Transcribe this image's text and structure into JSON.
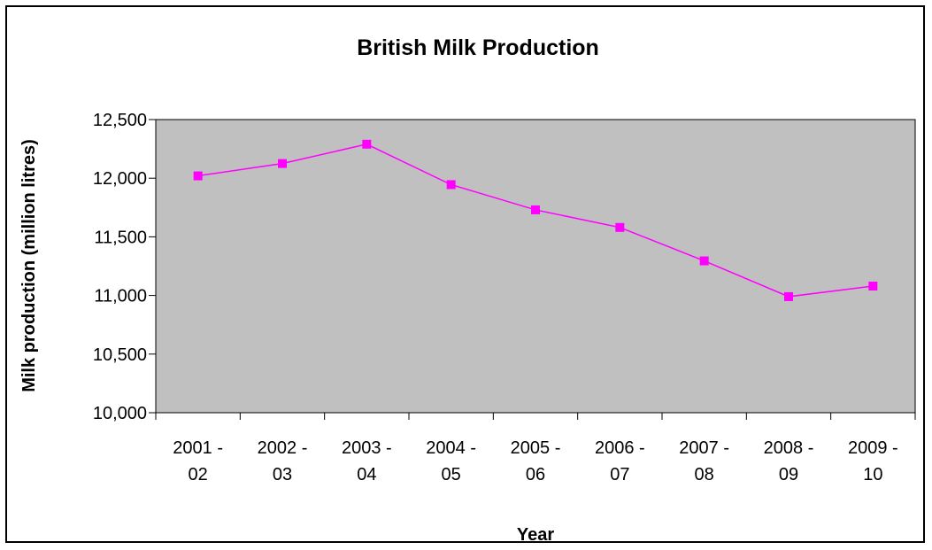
{
  "chart_data": {
    "type": "line",
    "title": "British Milk Production",
    "xlabel": "Year",
    "ylabel": "Milk production (million litres)",
    "categories": [
      [
        "2001 -",
        "02"
      ],
      [
        "2002 -",
        "03"
      ],
      [
        "2003 -",
        "04"
      ],
      [
        "2004 -",
        "05"
      ],
      [
        "2005 -",
        "06"
      ],
      [
        "2006 -",
        "07"
      ],
      [
        "2007 -",
        "08"
      ],
      [
        "2008 -",
        "09"
      ],
      [
        "2009 -",
        "10"
      ]
    ],
    "series": [
      {
        "values": [
          12020,
          12125,
          12290,
          11945,
          11730,
          11580,
          11295,
          10990,
          11080
        ],
        "color": "#ff00ff",
        "marker": "square"
      }
    ],
    "ylim": [
      10000,
      12500
    ],
    "yticks": [
      10000,
      10500,
      11000,
      11500,
      12000,
      12500
    ],
    "ytick_labels": [
      "10,000",
      "10,500",
      "11,000",
      "11,500",
      "12,000",
      "12,500"
    ],
    "plot_background": "#c0c0c0",
    "grid": false,
    "legend": "none"
  }
}
